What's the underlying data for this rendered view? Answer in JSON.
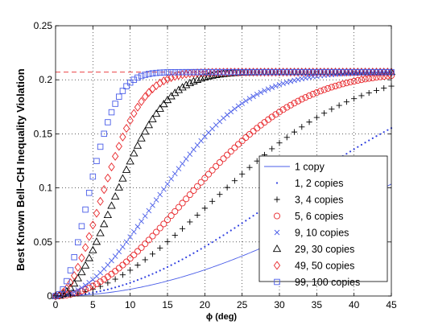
{
  "chart_data": {
    "type": "line",
    "xlabel": "ϕ (deg)",
    "ylabel": "Best Known Bell−CH Inequality Violation",
    "xlim": [
      0,
      45
    ],
    "ylim": [
      0,
      0.25
    ],
    "x_ticks": [
      "0",
      "5",
      "10",
      "15",
      "20",
      "25",
      "30",
      "35",
      "40",
      "45"
    ],
    "y_ticks": [
      "0",
      "0.05",
      "0.1",
      "0.15",
      "0.2",
      "0.25"
    ],
    "grid": "dotted",
    "asymptote": {
      "y": 0.2071,
      "color": "#e8262a",
      "style": "dashed"
    },
    "legend_position": "lower-right",
    "series": [
      {
        "name": "1 copy",
        "marker": "line",
        "color": "#4a5de8",
        "n": 1,
        "x_step": 0.2,
        "x_start": 0,
        "x_end": 45
      },
      {
        "name": "1, 2 copies",
        "marker": "dot",
        "color": "#2f3fe0",
        "n": 2,
        "x_step": 0.5,
        "x_start": 0,
        "x_end": 45
      },
      {
        "name": "3, 4 copies",
        "marker": "plus",
        "color": "#000000",
        "n": 4,
        "x_step": 1.0,
        "x_start": 0,
        "x_end": 45
      },
      {
        "name": "5, 6 copies",
        "marker": "circle",
        "color": "#e8262a",
        "n": 6,
        "x_step": 0.5,
        "x_start": 0,
        "x_end": 45
      },
      {
        "name": "9, 10 copies",
        "marker": "x",
        "color": "#4a5de8",
        "n": 10,
        "x_step": 0.5,
        "x_start": 0,
        "x_end": 45
      },
      {
        "name": "29, 30 copies",
        "marker": "triangle",
        "color": "#000000",
        "n": 30,
        "x_step": 0.5,
        "x_start": 0,
        "x_end": 45
      },
      {
        "name": "49, 50 copies",
        "marker": "diamond",
        "color": "#e8262a",
        "n": 50,
        "x_step": 0.5,
        "x_start": 0,
        "x_end": 45
      },
      {
        "name": "99, 100 copies",
        "marker": "square",
        "color": "#4a5de8",
        "n": 100,
        "x_step": 0.5,
        "x_start": 0,
        "x_end": 45
      }
    ]
  }
}
